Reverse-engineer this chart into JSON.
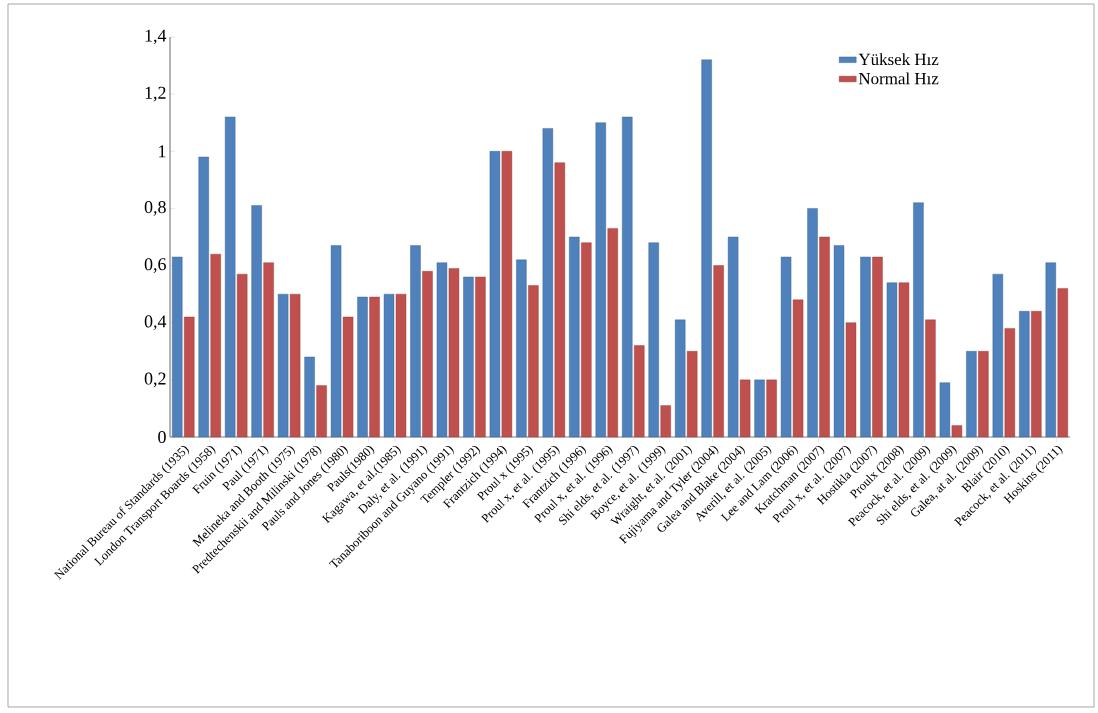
{
  "chart_data": {
    "type": "bar",
    "categories": [
      "National Bureau of Standards (1935)",
      "London Transport Boards (1958)",
      "Fruin (1971)",
      "Paul (1971)",
      "Melineka and Booth (1975)",
      "Predtechenskii and Milinski (1978)",
      "Pauls and Jones (1980)",
      "Pauls(1980)",
      "Kagawa, et al.(1985)",
      "Daly, et al. (1991)",
      "Tanaboriboon and Guyano (1991)",
      "Templer (1992)",
      "Frantzich (1994)",
      "Proul x (1995)",
      "Proul x, et al. (1995)",
      "Frantzich (1996)",
      "Proul x, et al. (1996)",
      "Shi elds, et al. (1997)",
      "Boyce, et al. (1999)",
      "Wraight, et al. (2001)",
      "Fujiyama and Tyler (2004)",
      "Galea and Blake (2004)",
      "Averill, et al. (2005)",
      "Lee and Lam (2006)",
      "Kratchman (2007)",
      "Proul x, et al. (2007)",
      "Hostikla (2007)",
      "Proulx (2008)",
      "Peacock, et al. (2009)",
      "Shi elds, et al. (2009)",
      "Galea, at al. (2009)",
      "Blair (2010)",
      "Peacock, et al. (2011)",
      "Hoskins (2011)"
    ],
    "series": [
      {
        "name": "Yüksek Hız",
        "color": "#4f81bd",
        "values": [
          0.63,
          0.98,
          1.12,
          0.81,
          0.5,
          0.28,
          0.67,
          0.49,
          0.5,
          0.67,
          0.61,
          0.56,
          1.0,
          0.62,
          1.08,
          0.7,
          1.1,
          1.12,
          0.68,
          0.41,
          1.32,
          0.7,
          0.2,
          0.63,
          0.8,
          0.67,
          0.63,
          0.54,
          0.82,
          0.19,
          0.3,
          0.57,
          0.44,
          0.61
        ]
      },
      {
        "name": "Normal Hız",
        "color": "#c0504d",
        "values": [
          0.42,
          0.64,
          0.57,
          0.61,
          0.5,
          0.18,
          0.42,
          0.49,
          0.5,
          0.58,
          0.59,
          0.56,
          1.0,
          0.53,
          0.96,
          0.68,
          0.73,
          0.32,
          0.11,
          0.3,
          0.6,
          0.2,
          0.2,
          0.48,
          0.7,
          0.4,
          0.63,
          0.54,
          0.41,
          0.04,
          0.3,
          0.38,
          0.44,
          0.52
        ]
      }
    ],
    "ylim": [
      0,
      1.4
    ],
    "yticks": [
      0,
      {
        "value": 0.2,
        "label": "0,2"
      },
      {
        "value": 0.4,
        "label": "0,4"
      },
      {
        "value": 0.6,
        "label": "0,6"
      },
      {
        "value": 0.8,
        "label": "0,8"
      },
      1,
      {
        "value": 1.2,
        "label": "1,2"
      },
      {
        "value": 1.4,
        "label": "1,4"
      }
    ],
    "grid": false,
    "legend": "top right"
  }
}
